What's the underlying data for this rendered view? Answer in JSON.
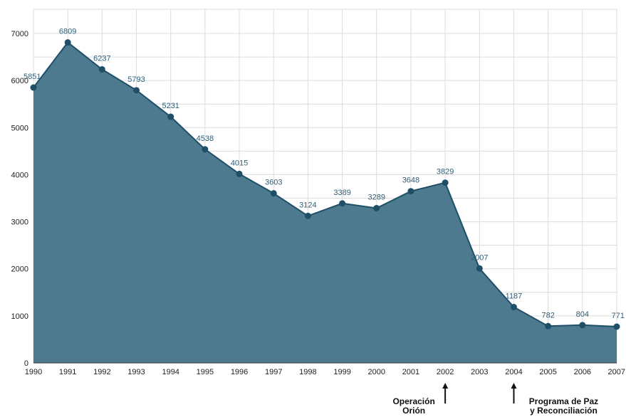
{
  "chart_data": {
    "type": "area",
    "x": [
      "1990",
      "1991",
      "1992",
      "1993",
      "1994",
      "1995",
      "1996",
      "1997",
      "1998",
      "1999",
      "2000",
      "2001",
      "2002",
      "2003",
      "2004",
      "2005",
      "2006",
      "2007"
    ],
    "values": [
      5851,
      6809,
      6237,
      5793,
      5231,
      4538,
      4015,
      3603,
      3124,
      3389,
      3289,
      3648,
      3829,
      2007,
      1187,
      782,
      804,
      771
    ],
    "ylim": [
      0,
      7000
    ],
    "yticks": [
      "0",
      "1000",
      "2000",
      "3000",
      "4000",
      "5000",
      "6000",
      "7000"
    ],
    "grid": true,
    "data_labels": true,
    "colors": {
      "area_fill": "#4d7a8e",
      "line": "#1f4e68",
      "label": "#2f5f78"
    },
    "annotations": [
      {
        "x": "2002",
        "lines": [
          "Operación",
          "Orión"
        ]
      },
      {
        "x": "2004",
        "lines": [
          "Programa de Paz",
          "y Reconciliación"
        ]
      }
    ]
  }
}
